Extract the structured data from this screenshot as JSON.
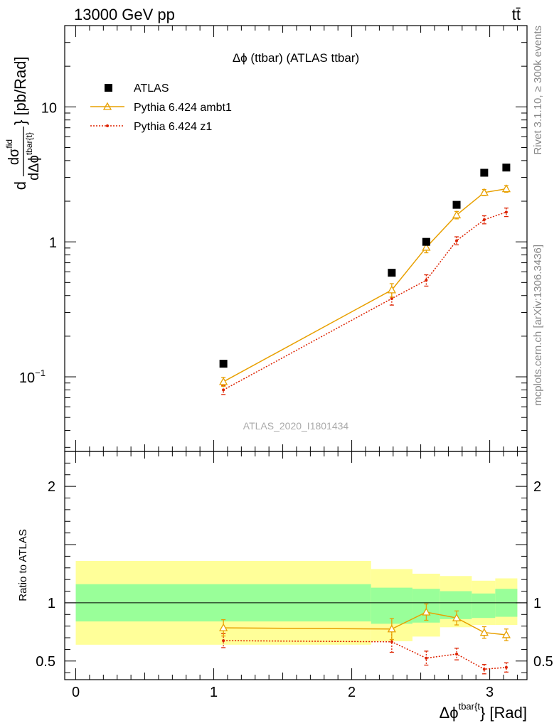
{
  "header": {
    "energy_label": "13000 GeV pp",
    "process_label": "tt̄"
  },
  "side_text": {
    "rivet": "Rivet 3.1.10, ≥ 300k events",
    "mcplots": "mcplots.cern.ch [arXiv:1306.3436]"
  },
  "chart_data": [
    {
      "type": "scatter",
      "title": "Δϕ (ttbar) (ATLAS ttbar)",
      "ylabel": "dσ^fid / dΔϕ^tbar{t} [pb/Rad]",
      "yscale": "log",
      "ylim": [
        0.028,
        40
      ],
      "xlim": [
        -0.08,
        3.27
      ],
      "yticks": [
        {
          "value": 0.1,
          "label": "10",
          "sup": "−1"
        },
        {
          "value": 1,
          "label": "1",
          "sup": ""
        },
        {
          "value": 10,
          "label": "10",
          "sup": ""
        }
      ],
      "watermark": "ATLAS_2020_I1801434",
      "legend_placement": "top-left",
      "x": [
        1.07,
        2.29,
        2.54,
        2.76,
        2.96,
        3.12
      ],
      "series": [
        {
          "name": "ATLAS",
          "color": "#000000",
          "marker": "square",
          "values": [
            0.125,
            0.59,
            1.0,
            1.88,
            3.25,
            3.55
          ]
        },
        {
          "name": "Pythia 6.424 ambt1",
          "color": "#e8a000",
          "marker": "triangle",
          "line": "solid",
          "values": [
            0.092,
            0.44,
            0.91,
            1.58,
            2.32,
            2.47
          ],
          "errors": [
            0.007,
            0.05,
            0.08,
            0.1,
            0.12,
            0.14
          ]
        },
        {
          "name": "Pythia 6.424 z1",
          "color": "#dd2200",
          "marker": "dot",
          "line": "dotted",
          "values": [
            0.08,
            0.38,
            0.52,
            1.02,
            1.46,
            1.66
          ],
          "errors": [
            0.006,
            0.04,
            0.05,
            0.07,
            0.1,
            0.12
          ]
        }
      ]
    },
    {
      "type": "line",
      "ylabel": "Ratio to ATLAS",
      "xlabel": "Δϕ^tbar{t} [Rad]",
      "ylim": [
        0.34,
        2.3
      ],
      "xlim": [
        -0.08,
        3.27
      ],
      "xticks": [
        0,
        1,
        2,
        3
      ],
      "yticks": [
        0.5,
        1,
        2
      ],
      "band_edges": [
        0,
        2.14,
        2.44,
        2.64,
        2.87,
        3.04,
        3.2
      ],
      "band_green": [
        [
          0.84,
          1.16
        ],
        [
          0.82,
          1.13
        ],
        [
          0.83,
          1.12
        ],
        [
          0.86,
          1.1
        ],
        [
          0.87,
          1.08
        ],
        [
          0.88,
          1.12
        ]
      ],
      "band_yellow": [
        [
          0.64,
          1.36
        ],
        [
          0.67,
          1.29
        ],
        [
          0.71,
          1.25
        ],
        [
          0.79,
          1.23
        ],
        [
          0.81,
          1.19
        ],
        [
          0.81,
          1.21
        ]
      ],
      "x": [
        1.07,
        2.29,
        2.54,
        2.76,
        2.96,
        3.12
      ],
      "series": [
        {
          "name": "Pythia 6.424 ambt1",
          "color": "#e8a000",
          "marker": "triangle",
          "line": "solid",
          "values": [
            0.785,
            0.775,
            0.92,
            0.87,
            0.745,
            0.725
          ],
          "errors": [
            0.07,
            0.09,
            0.07,
            0.06,
            0.05,
            0.05
          ]
        },
        {
          "name": "Pythia 6.424 z1",
          "color": "#dd2200",
          "marker": "dot",
          "line": "dotted",
          "values": [
            0.675,
            0.665,
            0.525,
            0.56,
            0.43,
            0.445
          ],
          "errors": [
            0.06,
            0.09,
            0.06,
            0.05,
            0.04,
            0.04
          ]
        }
      ]
    }
  ]
}
